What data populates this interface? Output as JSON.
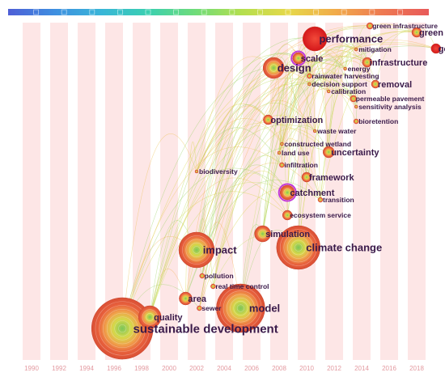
{
  "timeline": {
    "years": [
      "1990",
      "1992",
      "1994",
      "1996",
      "1998",
      "2000",
      "2002",
      "2004",
      "2006",
      "2008",
      "2010",
      "2012",
      "2014",
      "2016",
      "2018"
    ]
  },
  "colors": {
    "band": "#fde6e6",
    "year_label": "#e39aa0",
    "label_text": "#3a1a4a",
    "ring_outer": "#e8603c",
    "ring_mid": "#f0a04a",
    "ring_inner": "#d6d84a",
    "core": "#7cc65a",
    "recent": "#e8211e",
    "highlight_ring": "#c23ad8"
  },
  "color_scale": [
    "#4e5fd6",
    "#3f8fe0",
    "#39b6d8",
    "#3bd0b0",
    "#6fdc7a",
    "#b4df4e",
    "#e6d84a",
    "#f1ab4a",
    "#ee7a52",
    "#e85a5a"
  ],
  "keywords": [
    {
      "label": "sustainable development",
      "size": "xl",
      "year_pos": 3.3,
      "row": 406,
      "radius": 38,
      "recent": false
    },
    {
      "label": "model",
      "size": "l",
      "year_pos": 7.6,
      "row": 381,
      "radius": 30,
      "recent": false
    },
    {
      "label": "quality",
      "size": "m",
      "year_pos": 4.3,
      "row": 392,
      "radius": 14,
      "recent": false
    },
    {
      "label": "sewer",
      "size": "s",
      "year_pos": 6.1,
      "row": 381,
      "radius": 3,
      "recent": false
    },
    {
      "label": "area",
      "size": "m",
      "year_pos": 5.6,
      "row": 369,
      "radius": 8,
      "recent": false
    },
    {
      "label": "real time control",
      "size": "s",
      "year_pos": 6.6,
      "row": 354,
      "radius": 3,
      "recent": false
    },
    {
      "label": "pollution",
      "size": "s",
      "year_pos": 6.2,
      "row": 341,
      "radius": 3,
      "recent": false
    },
    {
      "label": "impact",
      "size": "l",
      "year_pos": 6.0,
      "row": 309,
      "radius": 22,
      "recent": false
    },
    {
      "label": "climate change",
      "size": "l",
      "year_pos": 9.7,
      "row": 306,
      "radius": 27,
      "recent": false
    },
    {
      "label": "simulation",
      "size": "m",
      "year_pos": 8.4,
      "row": 289,
      "radius": 10,
      "recent": false
    },
    {
      "label": "ecosystem service",
      "size": "s",
      "year_pos": 9.3,
      "row": 266,
      "radius": 6,
      "recent": false
    },
    {
      "label": "transition",
      "size": "s",
      "year_pos": 10.5,
      "row": 247,
      "radius": 3,
      "recent": false
    },
    {
      "label": "catchment",
      "size": "m",
      "year_pos": 9.3,
      "row": 238,
      "radius": 9,
      "recent": false
    },
    {
      "label": "framework",
      "size": "m",
      "year_pos": 10.0,
      "row": 219,
      "radius": 6,
      "recent": false
    },
    {
      "label": "biodiversity",
      "size": "s",
      "year_pos": 6.0,
      "row": 212,
      "radius": 2,
      "recent": false
    },
    {
      "label": "infiltration",
      "size": "s",
      "year_pos": 9.1,
      "row": 204,
      "radius": 3,
      "recent": false
    },
    {
      "label": "land use",
      "size": "s",
      "year_pos": 9.0,
      "row": 189,
      "radius": 2,
      "recent": false
    },
    {
      "label": "uncertainty",
      "size": "m",
      "year_pos": 10.8,
      "row": 188,
      "radius": 7,
      "recent": false
    },
    {
      "label": "constructed wetland",
      "size": "s",
      "year_pos": 9.1,
      "row": 178,
      "radius": 2,
      "recent": false
    },
    {
      "label": "waste water",
      "size": "s",
      "year_pos": 10.3,
      "row": 162,
      "radius": 2,
      "recent": false
    },
    {
      "label": "optimization",
      "size": "m",
      "year_pos": 8.6,
      "row": 148,
      "radius": 6,
      "recent": false
    },
    {
      "label": "bioretention",
      "size": "s",
      "year_pos": 11.8,
      "row": 150,
      "radius": 3,
      "recent": false
    },
    {
      "label": "sensitivity analysis",
      "size": "s",
      "year_pos": 11.8,
      "row": 132,
      "radius": 2,
      "recent": false
    },
    {
      "label": "permeable pavement",
      "size": "s",
      "year_pos": 11.7,
      "row": 122,
      "radius": 4,
      "recent": false
    },
    {
      "label": "calibration",
      "size": "s",
      "year_pos": 10.8,
      "row": 113,
      "radius": 2,
      "recent": false
    },
    {
      "label": "decision support",
      "size": "s",
      "year_pos": 10.1,
      "row": 104,
      "radius": 2,
      "recent": false
    },
    {
      "label": "removal",
      "size": "m",
      "year_pos": 12.5,
      "row": 104,
      "radius": 5,
      "recent": false
    },
    {
      "label": "rainwater harvesting",
      "size": "s",
      "year_pos": 10.1,
      "row": 94,
      "radius": 3,
      "recent": false
    },
    {
      "label": "design",
      "size": "l",
      "year_pos": 8.8,
      "row": 84,
      "radius": 13,
      "recent": false
    },
    {
      "label": "energy",
      "size": "s",
      "year_pos": 11.4,
      "row": 85,
      "radius": 2,
      "recent": false
    },
    {
      "label": "infrastructure",
      "size": "m",
      "year_pos": 12.2,
      "row": 77,
      "radius": 6,
      "recent": false
    },
    {
      "label": "scale",
      "size": "m",
      "year_pos": 9.7,
      "row": 72,
      "radius": 7,
      "recent": false
    },
    {
      "label": "mitigation",
      "size": "s",
      "year_pos": 11.8,
      "row": 61,
      "radius": 2,
      "recent": false
    },
    {
      "label": "governance",
      "size": "m",
      "year_pos": 14.7,
      "row": 60,
      "radius": 6,
      "recent": true
    },
    {
      "label": "performance",
      "size": "l",
      "year_pos": 10.3,
      "row": 48,
      "radius": 15,
      "recent": true
    },
    {
      "label": "green roof",
      "size": "m",
      "year_pos": 14.0,
      "row": 40,
      "radius": 6,
      "recent": false
    },
    {
      "label": "green infrastructure",
      "size": "s",
      "year_pos": 12.3,
      "row": 32,
      "radius": 4,
      "recent": false
    }
  ]
}
